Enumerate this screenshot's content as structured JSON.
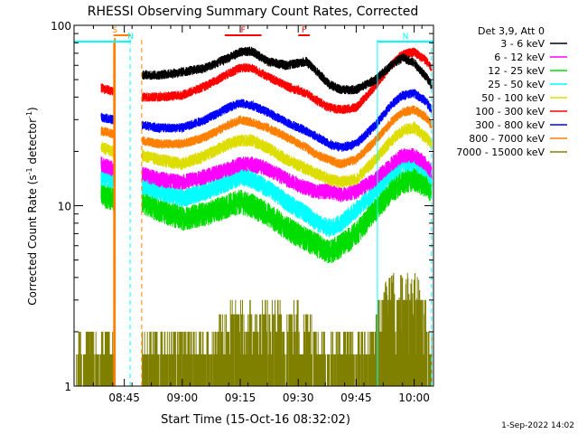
{
  "chart_data": {
    "type": "line",
    "title": "RHESSI Observing Summary Count Rates, Corrected",
    "xlabel": "Start Time (15-Oct-16 08:32:02)",
    "ylabel": "Corrected Count Rate (s",
    "ylabel_sup1": "-1",
    "ylabel_mid": " detector",
    "ylabel_sup2": "-1",
    "ylabel_end": ")",
    "y_scale": "log",
    "ylim": [
      1,
      100
    ],
    "y_ticks": [
      {
        "value": 1,
        "label": "1"
      },
      {
        "value": 10,
        "label": "10"
      },
      {
        "value": 100,
        "label": "100"
      }
    ],
    "x_range_minutes": [
      0,
      93
    ],
    "x_ticks": [
      {
        "value": 13,
        "label": "08:45"
      },
      {
        "value": 28,
        "label": "09:00"
      },
      {
        "value": 43,
        "label": "09:15"
      },
      {
        "value": 58,
        "label": "09:30"
      },
      {
        "value": 73,
        "label": "09:45"
      },
      {
        "value": 88,
        "label": "10:00"
      }
    ],
    "legend_title": "Det 3,9, Att 0",
    "legend_position": "right",
    "series": [
      {
        "name": "3 - 6 keV",
        "color": "#000000"
      },
      {
        "name": "6 - 12 keV",
        "color": "#ff00ff"
      },
      {
        "name": "12 - 25 keV",
        "color": "#00dd00"
      },
      {
        "name": "25 - 50 keV",
        "color": "#00ffff"
      },
      {
        "name": "50 - 100 keV",
        "color": "#dddd00"
      },
      {
        "name": "100 - 300 keV",
        "color": "#ff0000"
      },
      {
        "name": "300 - 800 keV",
        "color": "#0000ff"
      },
      {
        "name": "800 - 7000 keV",
        "color": "#ff7f00"
      },
      {
        "name": "7000 - 15000 keV",
        "color": "#808000"
      }
    ],
    "profiles": {
      "x": [
        7,
        10,
        17.5,
        22,
        28,
        34,
        40,
        43,
        46,
        50,
        55,
        60,
        63,
        66,
        69,
        73,
        78,
        82,
        85,
        88,
        91,
        93
      ],
      "3 - 6 keV": [
        null,
        null,
        null,
        53,
        55,
        58,
        66,
        71,
        72,
        63,
        60,
        63,
        55,
        47,
        44,
        44,
        50,
        60,
        66,
        62,
        52,
        45
      ],
      "100 - 300 keV": [
        45,
        43,
        40,
        40,
        41,
        46,
        54,
        58,
        58,
        52,
        46,
        42,
        38,
        35,
        34,
        35,
        46,
        60,
        69,
        71,
        64,
        56
      ],
      "300 - 800 keV": [
        31,
        30,
        28,
        27,
        27,
        30,
        35,
        37,
        36,
        33,
        29,
        26,
        24,
        22,
        21,
        22,
        28,
        36,
        41,
        42,
        38,
        33
      ],
      "800 - 7000 keV": [
        26,
        25,
        23,
        22,
        22,
        24,
        28,
        30,
        29,
        27,
        24,
        21,
        19,
        18,
        17,
        18,
        23,
        29,
        33,
        34,
        31,
        27
      ],
      "50 - 100 keV": [
        21,
        20,
        19,
        18,
        17,
        19,
        22,
        23,
        23,
        21,
        18,
        16,
        15,
        14,
        13.5,
        14,
        18,
        23,
        26,
        27,
        24,
        21
      ],
      "6 - 12 keV": [
        17,
        16,
        15,
        14,
        13.5,
        14.5,
        16,
        17,
        17,
        16,
        14,
        12.5,
        12,
        12,
        11.5,
        12,
        14,
        17,
        19,
        19,
        17,
        15
      ],
      "25 - 50 keV": [
        14.5,
        14,
        13,
        12,
        11,
        12,
        13.5,
        14.5,
        14,
        12.5,
        10.5,
        9,
        8,
        7.5,
        8,
        9.5,
        12,
        15,
        17,
        17.5,
        16,
        14
      ],
      "12 - 25 keV": [
        11.5,
        11,
        10.5,
        9.5,
        8.5,
        9,
        10,
        10.5,
        10,
        9,
        7.5,
        6.5,
        6,
        5.5,
        6,
        7,
        9.5,
        12,
        13.5,
        14,
        13,
        12
      ]
    },
    "flags": [
      {
        "label": "S",
        "color": "#ff7f00",
        "from": 10.2,
        "to": 14.7
      },
      {
        "label": "N",
        "color": "#00ffff",
        "from": 0,
        "to": 14.7
      },
      {
        "label": "N",
        "color": "#00ffff",
        "from": 78.5,
        "to": 93
      },
      {
        "label": "F",
        "color": "#ff0000",
        "from": 39,
        "to": 48.5
      },
      {
        "label": "F",
        "color": "#ff0000",
        "from": 58,
        "to": 61
      }
    ],
    "vlines": [
      {
        "color": "#00ffff",
        "x": 14.5,
        "dashed": true
      },
      {
        "color": "#ff7f00",
        "x": 17.5,
        "dashed": true
      },
      {
        "color": "#00ffff",
        "x": 78.5,
        "dashed": false
      },
      {
        "color": "#00ffff",
        "x": 92.5,
        "dashed": true
      }
    ],
    "timestamp": "1-Sep-2022 14:02"
  }
}
